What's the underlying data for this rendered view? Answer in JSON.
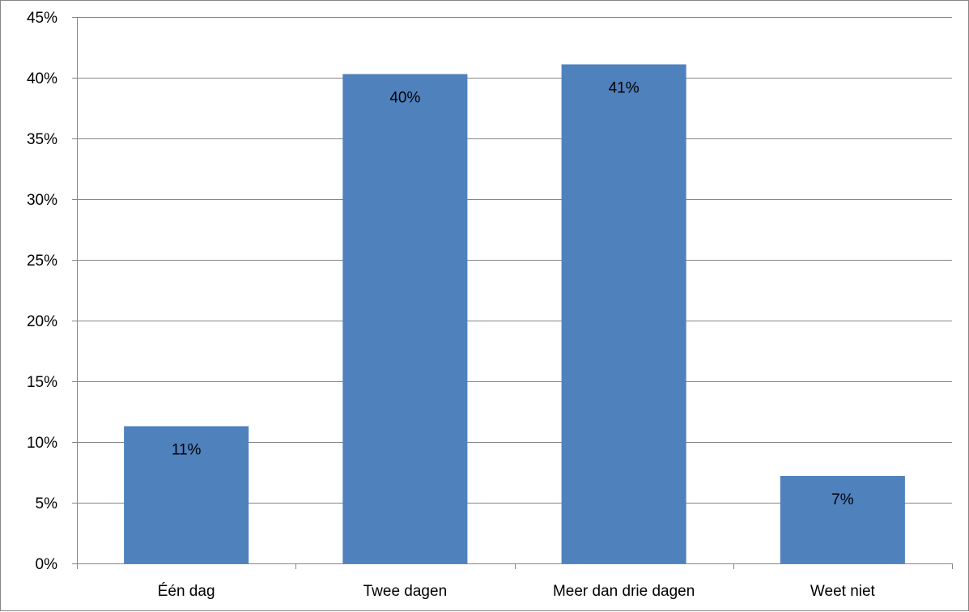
{
  "chart_data": {
    "type": "bar",
    "title": "",
    "xlabel": "",
    "ylabel": "",
    "categories": [
      "Één dag",
      "Twee dagen",
      "Meer dan drie dagen",
      "Weet niet"
    ],
    "values": [
      11.3,
      40.3,
      41.1,
      7.2
    ],
    "data_labels": [
      "11%",
      "40%",
      "41%",
      "7%"
    ],
    "ylim": [
      0,
      45
    ],
    "yticks": [
      0,
      5,
      10,
      15,
      20,
      25,
      30,
      35,
      40,
      45
    ],
    "ytick_labels": [
      "0%",
      "5%",
      "10%",
      "15%",
      "20%",
      "25%",
      "30%",
      "35%",
      "40%",
      "45%"
    ],
    "grid": true,
    "legend": "none",
    "colors": {
      "bar": "#4f81bd",
      "grid": "#868686",
      "axis": "#868686",
      "text": "#000000"
    }
  }
}
